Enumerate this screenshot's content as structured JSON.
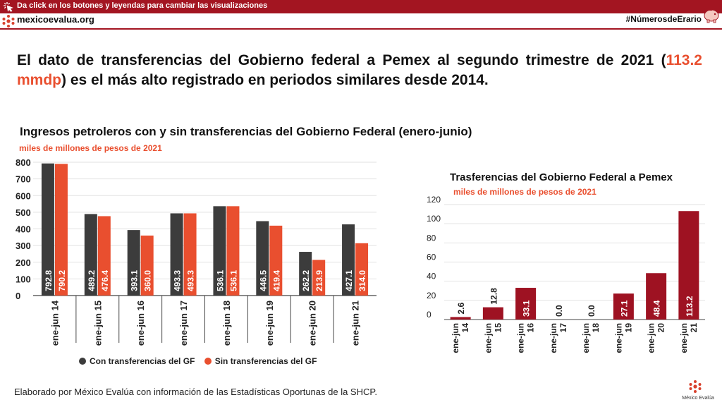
{
  "banner": {
    "instruction": "Da click en los botones y leyendas para cambiar las visualizaciones",
    "site": "mexicoevalua.org",
    "hashtag": "#NúmerosdeErario",
    "color": "#a31521"
  },
  "headline": {
    "part1": "El dato de transferencias del Gobierno federal a Pemex al segundo trimestre de 2021 (",
    "highlight": "113.2 mmdp",
    "part2": ") es el más alto registrado en periodos similares desde 2014.",
    "highlight_color": "#e94f2f"
  },
  "source": "Elaborado por México Evalúa con información de las Estadísticas Oportunas de la SHCP.",
  "footer_logo_text": "México Evalúa",
  "chart_data": [
    {
      "type": "bar",
      "title": "Ingresos petroleros con y sin transferencias del Gobierno Federal (enero-junio)",
      "subtitle": "miles de millones de pesos de 2021",
      "categories": [
        "ene-jun 14",
        "ene-jun 15",
        "ene-jun 16",
        "ene-jun 17",
        "ene-jun 18",
        "ene-jun 19",
        "ene-jun 20",
        "ene-jun 21"
      ],
      "series": [
        {
          "name": "Con transferencias del GF",
          "color": "#3c3c3c",
          "values": [
            792.8,
            489.2,
            393.1,
            493.3,
            536.1,
            446.5,
            262.2,
            427.1
          ]
        },
        {
          "name": "Sin transferencias del GF",
          "color": "#e94f2f",
          "values": [
            790.2,
            476.4,
            360.0,
            493.3,
            536.1,
            419.4,
            213.9,
            314.0
          ]
        }
      ],
      "ylim": [
        0,
        800
      ],
      "yticks": [
        0,
        100,
        200,
        300,
        400,
        500,
        600,
        700,
        800
      ],
      "grid": true,
      "legend": "bottom"
    },
    {
      "type": "bar",
      "title": "Trasferencias del Gobierno Federal a Pemex",
      "subtitle": "miles de millones de pesos de 2021",
      "categories": [
        "ene-jun 14",
        "ene-jun 15",
        "ene-jun 16",
        "ene-jun 17",
        "ene-jun 18",
        "ene-jun 19",
        "ene-jun 20",
        "ene-jun 21"
      ],
      "series": [
        {
          "color": "#9e1222",
          "values": [
            2.6,
            12.8,
            33.1,
            0.0,
            0.0,
            27.1,
            48.4,
            113.2
          ]
        }
      ],
      "ylim": [
        0,
        120
      ],
      "yticks": [
        0,
        20,
        40,
        60,
        80,
        100,
        120
      ],
      "grid": true,
      "legend": "none"
    }
  ]
}
